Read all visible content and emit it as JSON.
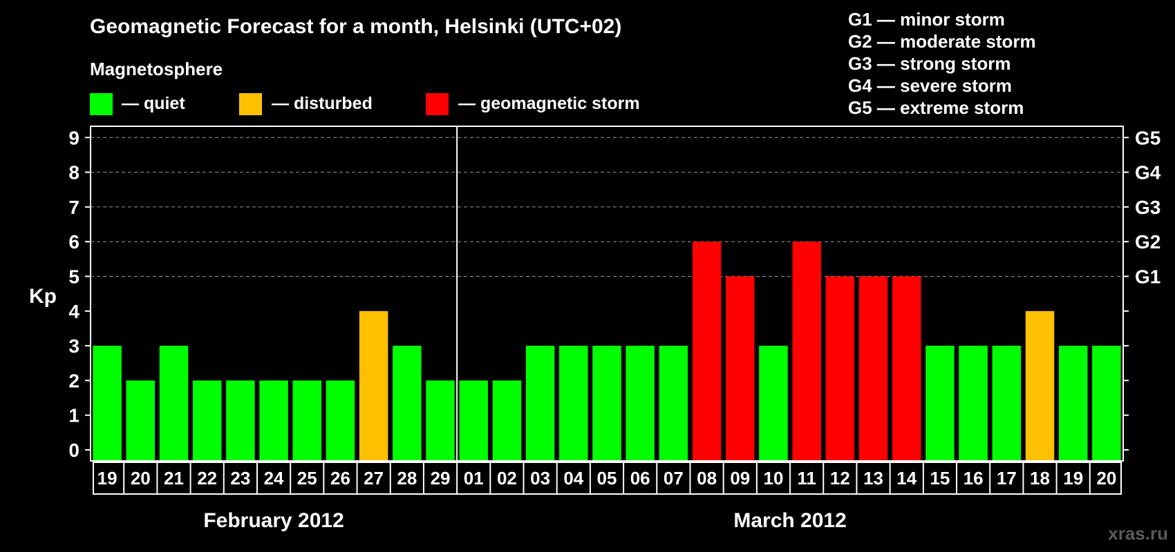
{
  "title": "Geomagnetic Forecast for a month, Helsinki (UTC+02)",
  "subtitle": "Magnetosphere",
  "legend": [
    {
      "label": "— quiet",
      "color": "#00ff00"
    },
    {
      "label": "— disturbed",
      "color": "#ffc000"
    },
    {
      "label": "— geomagnetic storm",
      "color": "#ff0000"
    }
  ],
  "storm_legend": [
    "G1 — minor storm",
    "G2 — moderate storm",
    "G3 — strong storm",
    "G4 — severe storm",
    "G5 — extreme storm"
  ],
  "watermark": "xras.ru",
  "chart_data": {
    "type": "bar",
    "ylabel": "Kp",
    "ylim": [
      0,
      9
    ],
    "yticks": [
      "0",
      "1",
      "2",
      "3",
      "4",
      "5",
      "6",
      "7",
      "8",
      "9"
    ],
    "right_axis": [
      {
        "label": "G1",
        "at": 5
      },
      {
        "label": "G2",
        "at": 6
      },
      {
        "label": "G3",
        "at": 7
      },
      {
        "label": "G4",
        "at": 8
      },
      {
        "label": "G5",
        "at": 9
      }
    ],
    "grid": "dashed horizontal at 5-9",
    "colors": {
      "quiet": "#00ff00",
      "disturbed": "#ffc000",
      "storm": "#ff0000"
    },
    "categories": [
      "19",
      "20",
      "21",
      "22",
      "23",
      "24",
      "25",
      "26",
      "27",
      "28",
      "29",
      "01",
      "02",
      "03",
      "04",
      "05",
      "06",
      "07",
      "08",
      "09",
      "10",
      "11",
      "12",
      "13",
      "14",
      "15",
      "16",
      "17",
      "18",
      "19",
      "20"
    ],
    "values": [
      3,
      2,
      3,
      2,
      2,
      2,
      2,
      2,
      4,
      3,
      2,
      2,
      2,
      3,
      3,
      3,
      3,
      3,
      6,
      5,
      3,
      6,
      5,
      5,
      5,
      3,
      3,
      3,
      4,
      3,
      3
    ],
    "months": [
      {
        "label": "February 2012",
        "days": 11
      },
      {
        "label": "March 2012",
        "days": 20
      }
    ]
  }
}
